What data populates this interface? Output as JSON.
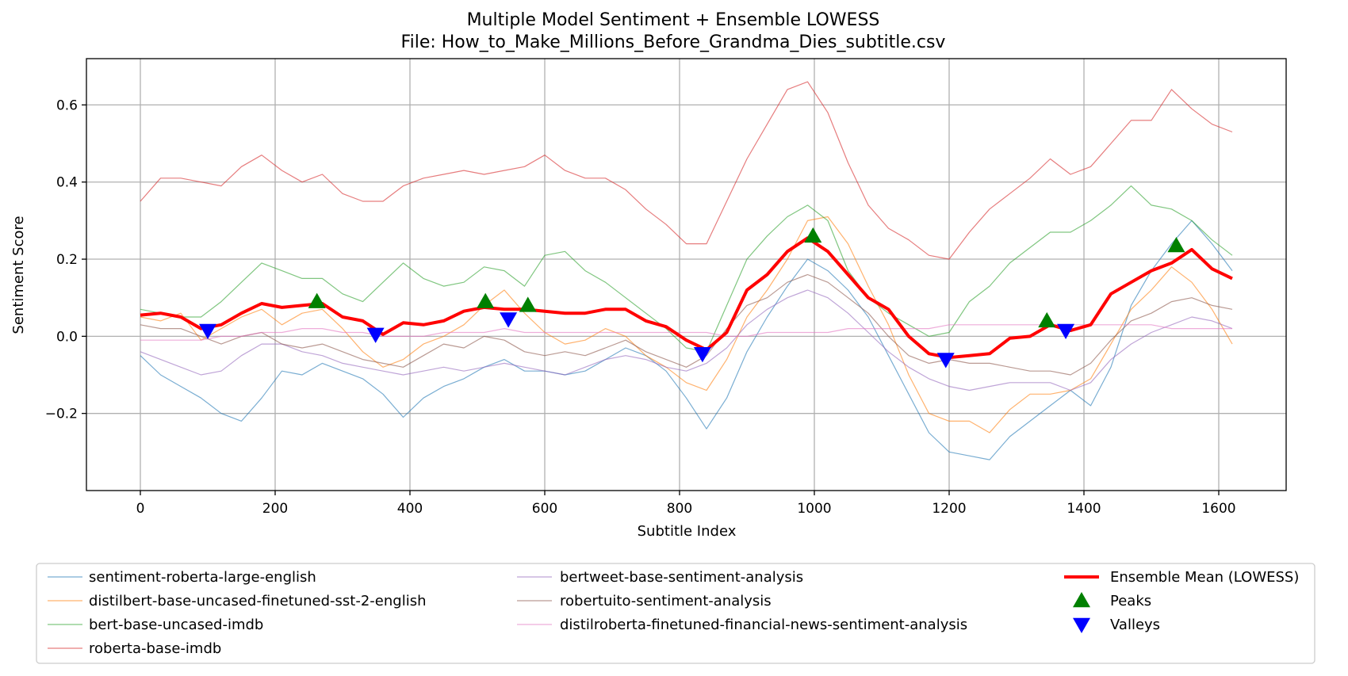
{
  "chart_data": {
    "type": "line",
    "title": "Multiple Model Sentiment + Ensemble LOWESS",
    "subtitle": "File: How_to_Make_Millions_Before_Grandma_Dies_subtitle.csv",
    "xlabel": "Subtitle Index",
    "ylabel": "Sentiment Score",
    "xlim": [
      -80,
      1700
    ],
    "ylim": [
      -0.4,
      0.72
    ],
    "xticks": [
      0,
      200,
      400,
      600,
      800,
      1000,
      1200,
      1400,
      1600
    ],
    "yticks": [
      -0.2,
      0.0,
      0.2,
      0.4,
      0.6
    ],
    "ytick_labels": [
      "−0.2",
      "0.0",
      "0.2",
      "0.4",
      "0.6"
    ],
    "grid": true,
    "legend_position": "below-plot",
    "series": [
      {
        "name": "sentiment-roberta-large-english",
        "color": "#1f77b4",
        "x": [
          0,
          30,
          60,
          90,
          120,
          150,
          180,
          210,
          240,
          270,
          300,
          330,
          360,
          390,
          420,
          450,
          480,
          510,
          540,
          570,
          600,
          630,
          660,
          690,
          720,
          750,
          780,
          810,
          840,
          870,
          900,
          930,
          960,
          990,
          1020,
          1050,
          1080,
          1110,
          1140,
          1170,
          1200,
          1230,
          1260,
          1290,
          1320,
          1350,
          1380,
          1410,
          1440,
          1470,
          1500,
          1530,
          1560,
          1590,
          1620
        ],
        "y": [
          -0.05,
          -0.1,
          -0.13,
          -0.16,
          -0.2,
          -0.22,
          -0.16,
          -0.09,
          -0.1,
          -0.07,
          -0.09,
          -0.11,
          -0.15,
          -0.21,
          -0.16,
          -0.13,
          -0.11,
          -0.08,
          -0.06,
          -0.09,
          -0.09,
          -0.1,
          -0.09,
          -0.06,
          -0.03,
          -0.05,
          -0.09,
          -0.16,
          -0.24,
          -0.16,
          -0.04,
          0.05,
          0.13,
          0.2,
          0.17,
          0.12,
          0.05,
          -0.05,
          -0.15,
          -0.25,
          -0.3,
          -0.31,
          -0.32,
          -0.26,
          -0.22,
          -0.18,
          -0.14,
          -0.18,
          -0.08,
          0.08,
          0.17,
          0.24,
          0.3,
          0.24,
          0.17
        ]
      },
      {
        "name": "distilbert-base-uncased-finetuned-sst-2-english",
        "color": "#ff7f0e",
        "x": [
          0,
          30,
          60,
          90,
          120,
          150,
          180,
          210,
          240,
          270,
          300,
          330,
          360,
          390,
          420,
          450,
          480,
          510,
          540,
          570,
          600,
          630,
          660,
          690,
          720,
          750,
          780,
          810,
          840,
          870,
          900,
          930,
          960,
          990,
          1020,
          1050,
          1080,
          1110,
          1140,
          1170,
          1200,
          1230,
          1260,
          1290,
          1320,
          1350,
          1380,
          1410,
          1440,
          1470,
          1500,
          1530,
          1560,
          1590,
          1620
        ],
        "y": [
          0.05,
          0.04,
          0.06,
          -0.01,
          0.02,
          0.05,
          0.07,
          0.03,
          0.06,
          0.07,
          0.02,
          -0.04,
          -0.08,
          -0.06,
          -0.02,
          0.0,
          0.03,
          0.08,
          0.12,
          0.06,
          0.01,
          -0.02,
          -0.01,
          0.02,
          0.0,
          -0.05,
          -0.08,
          -0.12,
          -0.14,
          -0.06,
          0.05,
          0.12,
          0.2,
          0.3,
          0.31,
          0.24,
          0.13,
          0.03,
          -0.1,
          -0.2,
          -0.22,
          -0.22,
          -0.25,
          -0.19,
          -0.15,
          -0.15,
          -0.14,
          -0.11,
          -0.02,
          0.07,
          0.12,
          0.18,
          0.14,
          0.07,
          -0.02
        ]
      },
      {
        "name": "bert-base-uncased-imdb",
        "color": "#2ca02c",
        "x": [
          0,
          30,
          60,
          90,
          120,
          150,
          180,
          210,
          240,
          270,
          300,
          330,
          360,
          390,
          420,
          450,
          480,
          510,
          540,
          570,
          600,
          630,
          660,
          690,
          720,
          750,
          780,
          810,
          840,
          870,
          900,
          930,
          960,
          990,
          1020,
          1050,
          1080,
          1110,
          1140,
          1170,
          1200,
          1230,
          1260,
          1290,
          1320,
          1350,
          1380,
          1410,
          1440,
          1470,
          1500,
          1530,
          1560,
          1590,
          1620
        ],
        "y": [
          0.07,
          0.06,
          0.05,
          0.05,
          0.09,
          0.14,
          0.19,
          0.17,
          0.15,
          0.15,
          0.11,
          0.09,
          0.14,
          0.19,
          0.15,
          0.13,
          0.14,
          0.18,
          0.17,
          0.13,
          0.21,
          0.22,
          0.17,
          0.14,
          0.1,
          0.06,
          0.02,
          -0.03,
          -0.04,
          0.08,
          0.2,
          0.26,
          0.31,
          0.34,
          0.3,
          0.17,
          0.1,
          0.06,
          0.03,
          0.0,
          0.01,
          0.09,
          0.13,
          0.19,
          0.23,
          0.27,
          0.27,
          0.3,
          0.34,
          0.39,
          0.34,
          0.33,
          0.3,
          0.25,
          0.21
        ]
      },
      {
        "name": "roberta-base-imdb",
        "color": "#d62728",
        "x": [
          0,
          30,
          60,
          90,
          120,
          150,
          180,
          210,
          240,
          270,
          300,
          330,
          360,
          390,
          420,
          450,
          480,
          510,
          540,
          570,
          600,
          630,
          660,
          690,
          720,
          750,
          780,
          810,
          840,
          870,
          900,
          930,
          960,
          990,
          1020,
          1050,
          1080,
          1110,
          1140,
          1170,
          1200,
          1230,
          1260,
          1290,
          1320,
          1350,
          1380,
          1410,
          1440,
          1470,
          1500,
          1530,
          1560,
          1590,
          1620
        ],
        "y": [
          0.35,
          0.41,
          0.41,
          0.4,
          0.39,
          0.44,
          0.47,
          0.43,
          0.4,
          0.42,
          0.37,
          0.35,
          0.35,
          0.39,
          0.41,
          0.42,
          0.43,
          0.42,
          0.43,
          0.44,
          0.47,
          0.43,
          0.41,
          0.41,
          0.38,
          0.33,
          0.29,
          0.24,
          0.24,
          0.35,
          0.46,
          0.55,
          0.64,
          0.66,
          0.58,
          0.45,
          0.34,
          0.28,
          0.25,
          0.21,
          0.2,
          0.27,
          0.33,
          0.37,
          0.41,
          0.46,
          0.42,
          0.44,
          0.5,
          0.56,
          0.56,
          0.64,
          0.59,
          0.55,
          0.53
        ]
      },
      {
        "name": "bertweet-base-sentiment-analysis",
        "color": "#9467bd",
        "x": [
          0,
          30,
          60,
          90,
          120,
          150,
          180,
          210,
          240,
          270,
          300,
          330,
          360,
          390,
          420,
          450,
          480,
          510,
          540,
          570,
          600,
          630,
          660,
          690,
          720,
          750,
          780,
          810,
          840,
          870,
          900,
          930,
          960,
          990,
          1020,
          1050,
          1080,
          1110,
          1140,
          1170,
          1200,
          1230,
          1260,
          1290,
          1320,
          1350,
          1380,
          1410,
          1440,
          1470,
          1500,
          1530,
          1560,
          1590,
          1620
        ],
        "y": [
          -0.04,
          -0.06,
          -0.08,
          -0.1,
          -0.09,
          -0.05,
          -0.02,
          -0.02,
          -0.04,
          -0.05,
          -0.07,
          -0.08,
          -0.09,
          -0.1,
          -0.09,
          -0.08,
          -0.09,
          -0.08,
          -0.07,
          -0.08,
          -0.09,
          -0.1,
          -0.08,
          -0.06,
          -0.05,
          -0.06,
          -0.08,
          -0.09,
          -0.07,
          -0.03,
          0.03,
          0.07,
          0.1,
          0.12,
          0.1,
          0.06,
          0.01,
          -0.04,
          -0.08,
          -0.11,
          -0.13,
          -0.14,
          -0.13,
          -0.12,
          -0.12,
          -0.12,
          -0.14,
          -0.12,
          -0.06,
          -0.02,
          0.01,
          0.03,
          0.05,
          0.04,
          0.02
        ]
      },
      {
        "name": "robertuito-sentiment-analysis",
        "color": "#8c564b",
        "x": [
          0,
          30,
          60,
          90,
          120,
          150,
          180,
          210,
          240,
          270,
          300,
          330,
          360,
          390,
          420,
          450,
          480,
          510,
          540,
          570,
          600,
          630,
          660,
          690,
          720,
          750,
          780,
          810,
          840,
          870,
          900,
          930,
          960,
          990,
          1020,
          1050,
          1080,
          1110,
          1140,
          1170,
          1200,
          1230,
          1260,
          1290,
          1320,
          1350,
          1380,
          1410,
          1440,
          1470,
          1500,
          1530,
          1560,
          1590,
          1620
        ],
        "y": [
          0.03,
          0.02,
          0.02,
          0.0,
          -0.02,
          0.0,
          0.01,
          -0.02,
          -0.03,
          -0.02,
          -0.04,
          -0.06,
          -0.07,
          -0.08,
          -0.05,
          -0.02,
          -0.03,
          0.0,
          -0.01,
          -0.04,
          -0.05,
          -0.04,
          -0.05,
          -0.03,
          -0.01,
          -0.04,
          -0.06,
          -0.08,
          -0.05,
          0.02,
          0.08,
          0.1,
          0.14,
          0.16,
          0.14,
          0.1,
          0.06,
          0.0,
          -0.05,
          -0.07,
          -0.06,
          -0.07,
          -0.07,
          -0.08,
          -0.09,
          -0.09,
          -0.1,
          -0.07,
          -0.01,
          0.04,
          0.06,
          0.09,
          0.1,
          0.08,
          0.07
        ]
      },
      {
        "name": "distilroberta-finetuned-financial-news-sentiment-analysis",
        "color": "#e377c2",
        "x": [
          0,
          30,
          60,
          90,
          120,
          150,
          180,
          210,
          240,
          270,
          300,
          330,
          360,
          390,
          420,
          450,
          480,
          510,
          540,
          570,
          600,
          630,
          660,
          690,
          720,
          750,
          780,
          810,
          840,
          870,
          900,
          930,
          960,
          990,
          1020,
          1050,
          1080,
          1110,
          1140,
          1170,
          1200,
          1230,
          1260,
          1290,
          1320,
          1350,
          1380,
          1410,
          1440,
          1470,
          1500,
          1530,
          1560,
          1590,
          1620
        ],
        "y": [
          -0.01,
          -0.01,
          -0.01,
          -0.01,
          0.0,
          0.0,
          0.01,
          0.01,
          0.02,
          0.02,
          0.01,
          0.01,
          0.0,
          0.0,
          0.0,
          0.01,
          0.01,
          0.01,
          0.02,
          0.01,
          0.01,
          0.01,
          0.01,
          0.01,
          0.01,
          0.01,
          0.01,
          0.01,
          0.01,
          0.0,
          0.0,
          0.01,
          0.01,
          0.01,
          0.01,
          0.02,
          0.02,
          0.02,
          0.02,
          0.02,
          0.03,
          0.03,
          0.03,
          0.03,
          0.03,
          0.03,
          0.03,
          0.03,
          0.03,
          0.03,
          0.03,
          0.02,
          0.02,
          0.02,
          0.02
        ]
      },
      {
        "name": "Ensemble Mean (LOWESS)",
        "color": "#ff0000",
        "x": [
          0,
          30,
          60,
          90,
          120,
          150,
          180,
          210,
          240,
          270,
          300,
          330,
          360,
          390,
          420,
          450,
          480,
          510,
          540,
          570,
          600,
          630,
          660,
          690,
          720,
          750,
          780,
          810,
          840,
          870,
          900,
          930,
          960,
          990,
          1020,
          1050,
          1080,
          1110,
          1140,
          1170,
          1200,
          1230,
          1260,
          1290,
          1320,
          1350,
          1380,
          1410,
          1440,
          1470,
          1500,
          1530,
          1560,
          1590,
          1620
        ],
        "y": [
          0.055,
          0.06,
          0.05,
          0.02,
          0.03,
          0.06,
          0.085,
          0.075,
          0.08,
          0.085,
          0.05,
          0.04,
          0.005,
          0.035,
          0.03,
          0.04,
          0.065,
          0.075,
          0.07,
          0.07,
          0.065,
          0.06,
          0.06,
          0.07,
          0.07,
          0.04,
          0.025,
          -0.01,
          -0.035,
          0.01,
          0.12,
          0.16,
          0.22,
          0.255,
          0.22,
          0.16,
          0.1,
          0.07,
          0.0,
          -0.045,
          -0.055,
          -0.05,
          -0.045,
          -0.005,
          0.0,
          0.03,
          0.015,
          0.03,
          0.11,
          0.14,
          0.17,
          0.19,
          0.225,
          0.175,
          0.15
        ]
      }
    ],
    "peaks": {
      "label": "Peaks",
      "color": "#008000",
      "points": [
        [
          262,
          0.09
        ],
        [
          512,
          0.09
        ],
        [
          575,
          0.08
        ],
        [
          998,
          0.26
        ],
        [
          1345,
          0.04
        ],
        [
          1537,
          0.235
        ]
      ]
    },
    "valleys": {
      "label": "Valleys",
      "color": "#0000ff",
      "points": [
        [
          100,
          0.015
        ],
        [
          349,
          0.005
        ],
        [
          546,
          0.045
        ],
        [
          834,
          -0.045
        ],
        [
          1195,
          -0.06
        ],
        [
          1373,
          0.015
        ]
      ]
    },
    "legend_entries": [
      "sentiment-roberta-large-english",
      "distilbert-base-uncased-finetuned-sst-2-english",
      "bert-base-uncased-imdb",
      "roberta-base-imdb",
      "bertweet-base-sentiment-analysis",
      "robertuito-sentiment-analysis",
      "distilroberta-finetuned-financial-news-sentiment-analysis",
      "Ensemble Mean (LOWESS)",
      "Peaks",
      "Valleys"
    ]
  }
}
